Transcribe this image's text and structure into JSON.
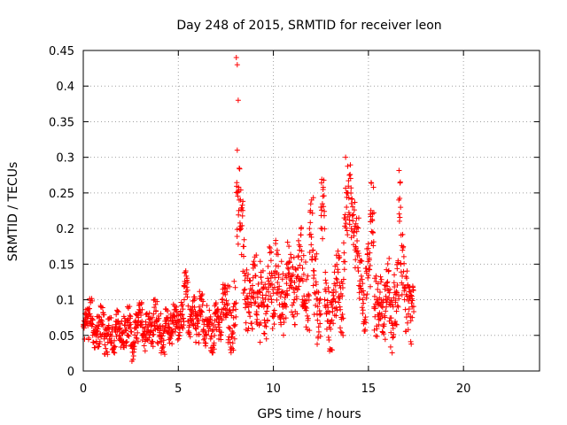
{
  "chart_data": {
    "type": "scatter",
    "title": "Day 248 of 2015, SRMTID for receiver leon",
    "xlabel": "GPS time / hours",
    "ylabel": "SRMTID / TECUs",
    "xlim": [
      0,
      24
    ],
    "ylim": [
      0,
      0.45
    ],
    "xticks": [
      0,
      5,
      10,
      15,
      20
    ],
    "xtick_labels": [
      "0",
      "5",
      "10",
      "15",
      "20"
    ],
    "yticks": [
      0,
      0.05,
      0.1,
      0.15,
      0.2,
      0.25,
      0.3,
      0.35,
      0.4,
      0.45
    ],
    "ytick_labels": [
      "0",
      "0.05",
      "0.1",
      "0.15",
      "0.2",
      "0.25",
      "0.3",
      "0.35",
      "0.4",
      "0.45"
    ],
    "grid": true,
    "marker": "+",
    "color": "#ff0000",
    "data_range_hours": [
      0,
      17.4
    ],
    "series": [
      {
        "name": "SRMTID",
        "x": [
          0.1,
          0.3,
          0.5,
          0.7,
          0.9,
          1.1,
          1.3,
          1.5,
          1.7,
          1.9,
          2.1,
          2.3,
          2.5,
          2.7,
          2.9,
          3.1,
          3.3,
          3.5,
          3.7,
          3.9,
          4.1,
          4.3,
          4.5,
          4.7,
          4.9,
          5.1,
          5.3,
          5.5,
          5.7,
          5.9,
          6.1,
          6.3,
          6.5,
          6.7,
          6.9,
          7.1,
          7.3,
          7.5,
          7.7,
          7.9,
          8.05,
          8.1,
          8.15,
          8.1,
          8.2,
          8.3,
          8.4,
          8.5,
          8.7,
          8.9,
          9.1,
          9.3,
          9.5,
          9.7,
          9.9,
          10.1,
          10.3,
          10.5,
          10.7,
          10.9,
          11.1,
          11.3,
          11.5,
          11.7,
          11.9,
          12.1,
          12.3,
          12.5,
          12.7,
          12.9,
          13.1,
          13.3,
          13.5,
          13.7,
          13.8,
          13.9,
          14.1,
          14.3,
          14.5,
          14.7,
          14.9,
          15.1,
          15.3,
          15.5,
          15.7,
          15.9,
          16.1,
          16.3,
          16.5,
          16.6,
          16.7,
          16.9,
          17.1,
          17.3
        ],
        "y": [
          0.065,
          0.08,
          0.05,
          0.055,
          0.07,
          0.045,
          0.06,
          0.04,
          0.065,
          0.05,
          0.055,
          0.07,
          0.035,
          0.06,
          0.075,
          0.05,
          0.065,
          0.055,
          0.08,
          0.06,
          0.045,
          0.07,
          0.06,
          0.075,
          0.065,
          0.08,
          0.12,
          0.07,
          0.085,
          0.06,
          0.09,
          0.055,
          0.07,
          0.045,
          0.08,
          0.065,
          0.1,
          0.075,
          0.06,
          0.09,
          0.44,
          0.43,
          0.38,
          0.31,
          0.24,
          0.2,
          0.14,
          0.1,
          0.09,
          0.12,
          0.08,
          0.11,
          0.09,
          0.13,
          0.1,
          0.14,
          0.11,
          0.09,
          0.15,
          0.12,
          0.1,
          0.16,
          0.13,
          0.09,
          0.2,
          0.12,
          0.08,
          0.23,
          0.1,
          0.07,
          0.11,
          0.13,
          0.09,
          0.18,
          0.3,
          0.25,
          0.2,
          0.17,
          0.12,
          0.1,
          0.14,
          0.22,
          0.09,
          0.1,
          0.08,
          0.12,
          0.07,
          0.09,
          0.11,
          0.24,
          0.15,
          0.1,
          0.08,
          0.09
        ]
      }
    ]
  }
}
